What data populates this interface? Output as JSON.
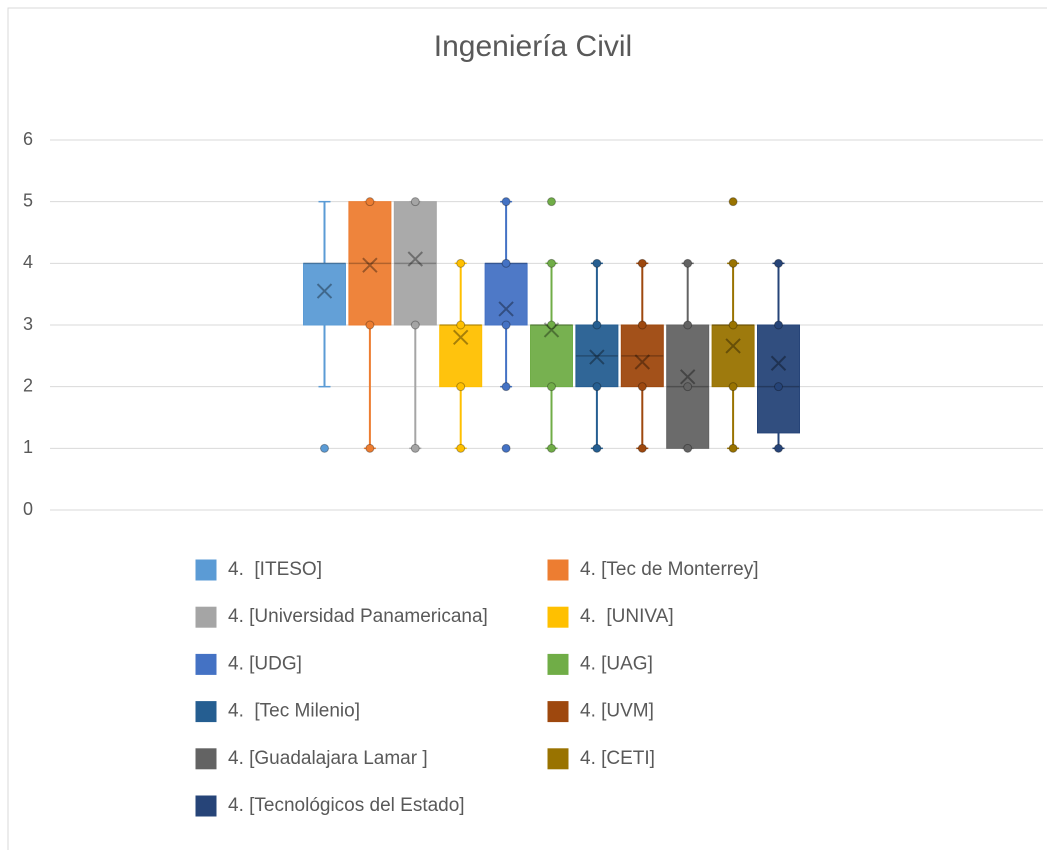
{
  "chart_data": {
    "type": "box",
    "title": "Ingeniería Civil",
    "ylim": [
      0,
      6
    ],
    "yticks": [
      0,
      1,
      2,
      3,
      4,
      5,
      6
    ],
    "grid": true,
    "legend": "bottom",
    "series": [
      {
        "name": "4.  [ITESO]",
        "color": "#5B9BD5",
        "min": 2,
        "q1": 3,
        "median": 4,
        "q3": 4,
        "max": 5,
        "mean": 3.55,
        "points": [
          1
        ]
      },
      {
        "name": "4. [Tec de Monterrey]",
        "color": "#ED7D31",
        "min": 1,
        "q1": 3,
        "median": 4,
        "q3": 5,
        "max": 5,
        "mean": 3.97,
        "points": [
          5,
          3,
          1
        ]
      },
      {
        "name": "4. [Universidad Panamericana]",
        "color": "#A5A5A5",
        "min": 1,
        "q1": 3,
        "median": 4,
        "q3": 5,
        "max": 5,
        "mean": 4.07,
        "points": [
          5,
          3,
          1
        ]
      },
      {
        "name": "4.  [UNIVA]",
        "color": "#FFC000",
        "min": 1,
        "q1": 2,
        "median": 3,
        "q3": 3,
        "max": 4,
        "mean": 2.8,
        "points": [
          4,
          3,
          2,
          1
        ]
      },
      {
        "name": "4. [UDG]",
        "color": "#4472C4",
        "min": 2,
        "q1": 3,
        "median": 4,
        "q3": 4,
        "max": 5,
        "mean": 3.26,
        "points": [
          5,
          4,
          3,
          2,
          1
        ]
      },
      {
        "name": "4. [UAG]",
        "color": "#70AD47",
        "min": 1,
        "q1": 2,
        "median": 3,
        "q3": 3,
        "max": 4,
        "mean": 2.92,
        "points": [
          5,
          4,
          3,
          2,
          1
        ]
      },
      {
        "name": "4.  [Tec Milenio]",
        "color": "#255E91",
        "min": 1,
        "q1": 2,
        "median": 2.5,
        "q3": 3,
        "max": 4,
        "mean": 2.48,
        "points": [
          4,
          3,
          2,
          1
        ]
      },
      {
        "name": "4. [UVM]",
        "color": "#9E480E",
        "min": 1,
        "q1": 2,
        "median": 2.5,
        "q3": 3,
        "max": 4,
        "mean": 2.4,
        "points": [
          4,
          3,
          2,
          1
        ]
      },
      {
        "name": "4. [Guadalajara Lamar ]",
        "color": "#636363",
        "min": 1,
        "q1": 1,
        "median": 2,
        "q3": 3,
        "max": 4,
        "mean": 2.16,
        "points": [
          4,
          3,
          2,
          1
        ]
      },
      {
        "name": "4. [CETI]",
        "color": "#997300",
        "min": 1,
        "q1": 2,
        "median": 3,
        "q3": 3,
        "max": 4,
        "mean": 2.66,
        "points": [
          5,
          4,
          3,
          2,
          1
        ]
      },
      {
        "name": "4. [Tecnológicos del Estado]",
        "color": "#264478",
        "min": 1,
        "q1": 1.25,
        "median": 2,
        "q3": 3,
        "max": 4,
        "mean": 2.38,
        "points": [
          4,
          3,
          2,
          1
        ]
      }
    ]
  }
}
